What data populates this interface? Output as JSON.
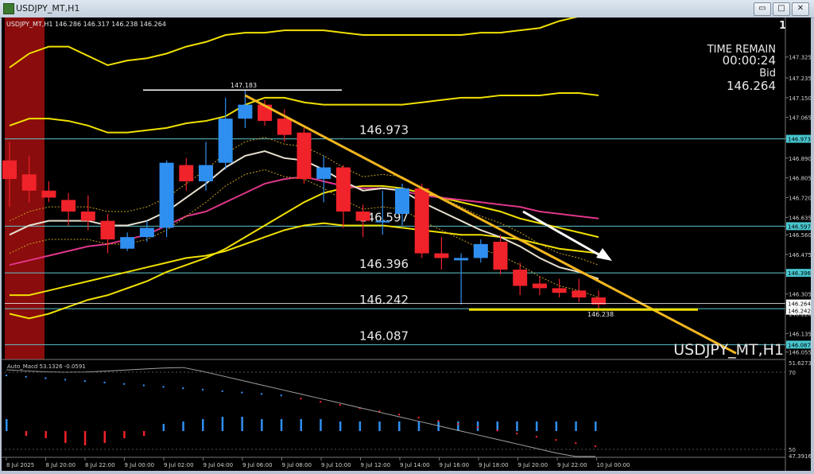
{
  "window": {
    "title": "USDJPY_MT,H1",
    "btn_min": "▭",
    "btn_max": "□",
    "btn_close": "✕"
  },
  "chart_data": {
    "type": "candlestick",
    "symbol_header": "USDJPY_MT,H1  146.286 146.317 146.238 146.264",
    "window_number": "1",
    "watermark": "USDJPY_MT,H1",
    "time_remain_label": "TIME REMAIN",
    "time_remain": "00:00:24",
    "bid_label": "Bid",
    "bid": "146.264",
    "ylim": [
      146.03,
      147.42
    ],
    "price_ticks": [
      "147.325",
      "147.235",
      "147.150",
      "147.065",
      "146.975",
      "146.890",
      "146.805",
      "146.720",
      "146.635",
      "146.560",
      "146.475",
      "146.390",
      "146.305",
      "146.220",
      "146.135",
      "146.055"
    ],
    "time_ticks": [
      "8 Jul 2025",
      "8 Jul 20:00",
      "8 Jul 22:00",
      "9 Jul 00:00",
      "9 Jul 02:00",
      "9 Jul 04:00",
      "9 Jul 06:00",
      "9 Jul 08:00",
      "9 Jul 10:00",
      "9 Jul 12:00",
      "9 Jul 14:00",
      "9 Jul 16:00",
      "9 Jul 18:00",
      "9 Jul 20:00",
      "9 Jul 22:00",
      "10 Jul 00:00"
    ],
    "candles": [
      {
        "o": 146.88,
        "h": 146.96,
        "l": 146.68,
        "c": 146.8
      },
      {
        "o": 146.82,
        "h": 146.9,
        "l": 146.7,
        "c": 146.75
      },
      {
        "o": 146.75,
        "h": 146.79,
        "l": 146.7,
        "c": 146.72
      },
      {
        "o": 146.71,
        "h": 146.74,
        "l": 146.6,
        "c": 146.66
      },
      {
        "o": 146.66,
        "h": 146.73,
        "l": 146.58,
        "c": 146.62
      },
      {
        "o": 146.62,
        "h": 146.65,
        "l": 146.48,
        "c": 146.54
      },
      {
        "o": 146.5,
        "h": 146.57,
        "l": 146.49,
        "c": 146.55
      },
      {
        "o": 146.55,
        "h": 146.62,
        "l": 146.53,
        "c": 146.59
      },
      {
        "o": 146.59,
        "h": 146.88,
        "l": 146.55,
        "c": 146.87
      },
      {
        "o": 146.86,
        "h": 146.89,
        "l": 146.75,
        "c": 146.79
      },
      {
        "o": 146.79,
        "h": 146.96,
        "l": 146.75,
        "c": 146.86
      },
      {
        "o": 146.87,
        "h": 147.15,
        "l": 146.84,
        "c": 147.06
      },
      {
        "o": 147.06,
        "h": 147.18,
        "l": 147.02,
        "c": 147.12
      },
      {
        "o": 147.12,
        "h": 147.14,
        "l": 147.03,
        "c": 147.05
      },
      {
        "o": 147.06,
        "h": 147.1,
        "l": 146.96,
        "c": 146.99
      },
      {
        "o": 147.0,
        "h": 147.02,
        "l": 146.78,
        "c": 146.8
      },
      {
        "o": 146.8,
        "h": 146.9,
        "l": 146.7,
        "c": 146.85
      },
      {
        "o": 146.85,
        "h": 146.86,
        "l": 146.59,
        "c": 146.66
      },
      {
        "o": 146.66,
        "h": 146.69,
        "l": 146.55,
        "c": 146.62
      },
      {
        "o": 146.62,
        "h": 146.75,
        "l": 146.56,
        "c": 146.62
      },
      {
        "o": 146.65,
        "h": 146.78,
        "l": 146.6,
        "c": 146.76
      },
      {
        "o": 146.76,
        "h": 146.78,
        "l": 146.46,
        "c": 146.48
      },
      {
        "o": 146.48,
        "h": 146.55,
        "l": 146.41,
        "c": 146.46
      },
      {
        "o": 146.45,
        "h": 146.48,
        "l": 146.26,
        "c": 146.46
      },
      {
        "o": 146.46,
        "h": 146.54,
        "l": 146.44,
        "c": 146.52
      },
      {
        "o": 146.53,
        "h": 146.56,
        "l": 146.39,
        "c": 146.41
      },
      {
        "o": 146.41,
        "h": 146.44,
        "l": 146.3,
        "c": 146.34
      },
      {
        "o": 146.35,
        "h": 146.38,
        "l": 146.3,
        "c": 146.33
      },
      {
        "o": 146.33,
        "h": 146.37,
        "l": 146.29,
        "c": 146.31
      },
      {
        "o": 146.32,
        "h": 146.37,
        "l": 146.27,
        "c": 146.29
      },
      {
        "o": 146.29,
        "h": 146.32,
        "l": 146.24,
        "c": 146.26
      }
    ],
    "horizontal_levels": [
      {
        "price": 146.973,
        "label": "146.973",
        "tag": "146.973"
      },
      {
        "price": 146.597,
        "label": "146.597",
        "tag": "146.597"
      },
      {
        "price": 146.396,
        "label": "146.396",
        "tag": "146.396"
      },
      {
        "price": 146.242,
        "label": "146.242",
        "tag": "146.242"
      },
      {
        "price": 146.087,
        "label": "146.087",
        "tag": "146.087"
      }
    ],
    "current_price_tag": "146.264",
    "current_price_sub_tag": "146.242",
    "high_marker": {
      "price": 147.183,
      "label": "147.183"
    },
    "low_marker": {
      "price": 146.238,
      "label": "146.238"
    },
    "trendline": [
      {
        "bar": 12,
        "price": 147.16
      },
      {
        "bar": 37,
        "price": 146.05
      }
    ],
    "indicators": {
      "ma_fast": [
        146.56,
        146.6,
        146.62,
        146.62,
        146.62,
        146.6,
        146.6,
        146.62,
        146.66,
        146.72,
        146.78,
        146.85,
        146.9,
        146.92,
        146.89,
        146.88,
        146.84,
        146.79,
        146.75,
        146.76,
        146.75,
        146.7,
        146.66,
        146.62,
        146.58,
        146.55,
        146.51,
        146.46,
        146.42,
        146.4,
        146.37
      ],
      "ma_slow": [
        146.43,
        146.45,
        146.47,
        146.49,
        146.51,
        146.52,
        146.54,
        146.56,
        146.6,
        146.64,
        146.66,
        146.7,
        146.74,
        146.78,
        146.8,
        146.81,
        146.79,
        146.77,
        146.76,
        146.76,
        146.75,
        146.73,
        146.72,
        146.71,
        146.7,
        146.69,
        146.68,
        146.66,
        146.65,
        146.64,
        146.63
      ],
      "bb_upper_outer": [
        147.28,
        147.34,
        147.37,
        147.37,
        147.33,
        147.29,
        147.31,
        147.32,
        147.34,
        147.37,
        147.39,
        147.42,
        147.43,
        147.43,
        147.44,
        147.44,
        147.44,
        147.43,
        147.42,
        147.42,
        147.42,
        147.42,
        147.42,
        147.42,
        147.43,
        147.43,
        147.44,
        147.45,
        147.48,
        147.5,
        147.53
      ],
      "bb_upper_inner": [
        147.03,
        147.06,
        147.06,
        147.05,
        147.03,
        147.0,
        147.0,
        147.01,
        147.02,
        147.04,
        147.05,
        147.07,
        147.12,
        147.15,
        147.15,
        147.13,
        147.12,
        147.12,
        147.12,
        147.12,
        147.12,
        147.13,
        147.14,
        147.15,
        147.15,
        147.16,
        147.16,
        147.16,
        147.17,
        147.17,
        147.16
      ],
      "bb_lower_inner": [
        146.3,
        146.3,
        146.32,
        146.34,
        146.36,
        146.38,
        146.4,
        146.42,
        146.44,
        146.46,
        146.47,
        146.49,
        146.52,
        146.55,
        146.58,
        146.6,
        146.61,
        146.6,
        146.6,
        146.6,
        146.59,
        146.58,
        146.57,
        146.56,
        146.56,
        146.55,
        146.54,
        146.52,
        146.5,
        146.49,
        146.48
      ],
      "bb_lower_outer": [
        146.22,
        146.2,
        146.22,
        146.25,
        146.28,
        146.3,
        146.33,
        146.36,
        146.4,
        146.43,
        146.46,
        146.5,
        146.55,
        146.6,
        146.65,
        146.7,
        146.74,
        146.76,
        146.77,
        146.77,
        146.76,
        146.74,
        146.72,
        146.7,
        146.68,
        146.66,
        146.63,
        146.61,
        146.59,
        146.57,
        146.55
      ]
    },
    "macd_panel": {
      "label": "Auto_Macd 53.1326   -0.0591",
      "ticks": [
        "51.6273",
        "70",
        "50",
        "47.3916"
      ],
      "bars": [
        0.05,
        -0.02,
        -0.03,
        -0.05,
        -0.06,
        -0.05,
        -0.03,
        -0.02,
        0.03,
        0.04,
        0.05,
        0.06,
        0.06,
        0.05,
        0.05,
        0.05,
        0.05,
        0.04,
        0.04,
        0.04,
        0.04,
        0.04,
        0.04,
        0.04,
        0.04,
        0.04,
        0.04,
        0.04,
        0.04,
        0.04,
        0.04
      ]
    },
    "bid_line_color": "#ffffff",
    "level_color": "#5ec7cf",
    "trend_color": "#f3b61f"
  }
}
